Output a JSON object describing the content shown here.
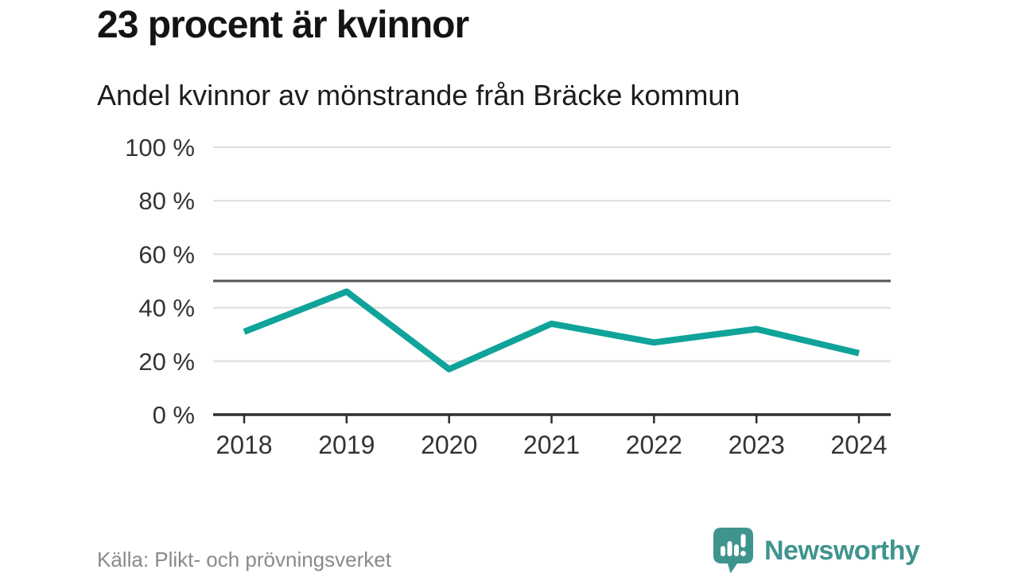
{
  "header": {
    "title": "23 procent är kvinnor",
    "subtitle": "Andel kvinnor av mönstrande från Bräcke kommun"
  },
  "footer": {
    "source": "Källa: Plikt- och prövningsverket",
    "brand_name": "Newsworthy",
    "brand_icon": "newsworthy-speech-bubble-chart-icon"
  },
  "colors": {
    "line": "#10a39a",
    "reference_line": "#555555",
    "grid": "#dedede",
    "axis": "#2f2f2f",
    "title_text": "#141414",
    "muted_text": "#8a8a8a",
    "brand": "#3f948e"
  },
  "chart_data": {
    "type": "line",
    "title": "Andel kvinnor av mönstrande från Bräcke kommun",
    "x": [
      "2018",
      "2019",
      "2020",
      "2021",
      "2022",
      "2023",
      "2024"
    ],
    "series": [
      {
        "name": "Andel kvinnor (%)",
        "color": "#10a39a",
        "values": [
          31,
          46,
          17,
          34,
          27,
          32,
          23
        ]
      }
    ],
    "xlabel": "",
    "ylabel": "",
    "ylim": [
      0,
      100
    ],
    "yticks": [
      {
        "value": 0,
        "label": "0 %"
      },
      {
        "value": 20,
        "label": "20 %"
      },
      {
        "value": 40,
        "label": "40 %"
      },
      {
        "value": 60,
        "label": "60 %"
      },
      {
        "value": 80,
        "label": "80 %"
      },
      {
        "value": 100,
        "label": "100 %"
      }
    ],
    "reference_line": {
      "value": 50,
      "color": "#555555"
    },
    "grid": true,
    "legend": "none"
  }
}
